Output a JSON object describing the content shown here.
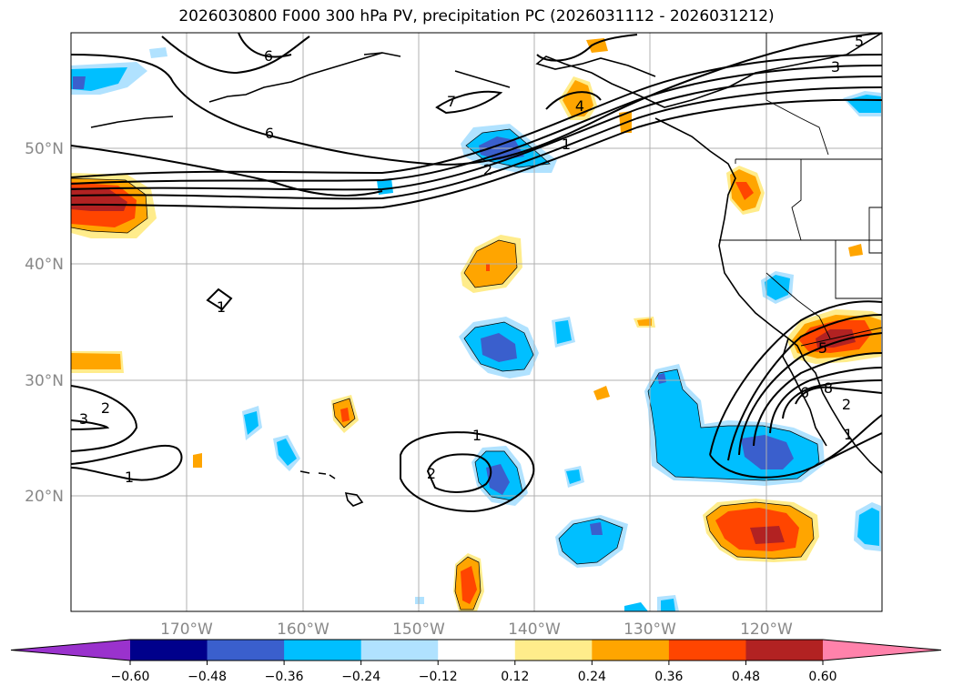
{
  "title": "2026030800 F000 300 hPa PV, precipitation PC (2026031112 - 2026031212)",
  "lat_labels": [
    "50°N",
    "40°N",
    "30°N",
    "20°N"
  ],
  "lon_labels": [
    "170°W",
    "160°W",
    "150°W",
    "140°W",
    "130°W",
    "120°W"
  ],
  "colorbar": {
    "ticks": [
      "−0.60",
      "−0.48",
      "−0.36",
      "−0.24",
      "−0.12",
      "0.12",
      "0.24",
      "0.36",
      "0.48",
      "0.60"
    ],
    "colors": [
      "#9a32cd",
      "#00008b",
      "#3a5fcd",
      "#00bfff",
      "#b0e2ff",
      "#ffffff",
      "#ffec8b",
      "#ffa500",
      "#ff4500",
      "#b22222",
      "#ff82ab"
    ]
  },
  "pv_contour_labels": [
    "1",
    "1",
    "1",
    "1",
    "1",
    "2",
    "2",
    "2",
    "2",
    "3",
    "3",
    "4",
    "5",
    "5",
    "6",
    "6",
    "6",
    "7",
    "8"
  ],
  "shading_colors": {
    "light_blue": "#b0e2ff",
    "blue": "#00bfff",
    "dark_blue": "#3a5fcd",
    "yellow": "#ffec8b",
    "orange": "#ffa500",
    "red_orange": "#ff4500",
    "dark_red": "#b22222"
  }
}
